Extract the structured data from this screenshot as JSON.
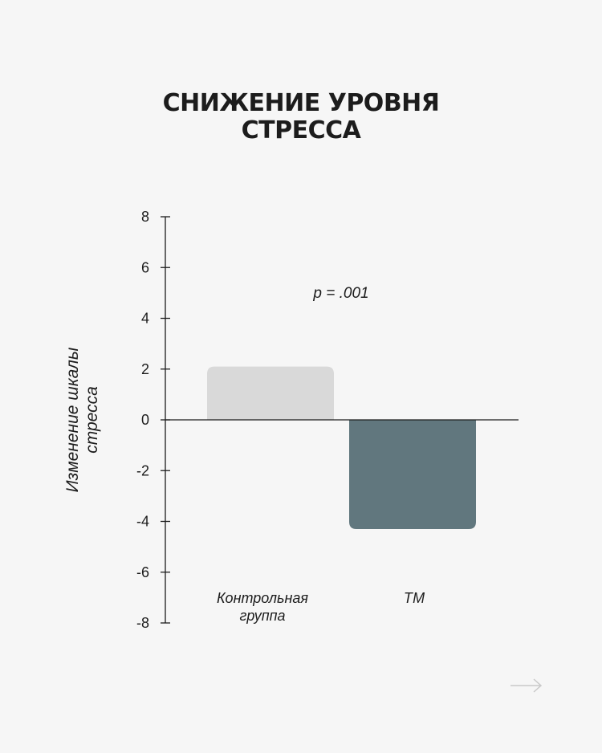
{
  "title_lines": [
    "СНИЖЕНИЕ УРОВНЯ",
    "СТРЕССА"
  ],
  "colors": {
    "background": "#f6f6f6",
    "text": "#1c1c1c",
    "axis": "#1c1c1c",
    "control_bar": "#d9d9d9",
    "tm_bar": "#61777e",
    "arrow": "#c9c9c9"
  },
  "chart_data": {
    "type": "bar",
    "title": "СНИЖЕНИЕ УРОВНЯ СТРЕССА",
    "ylabel_lines": [
      "Изменение шкалы",
      "стресса"
    ],
    "xlabel": "",
    "categories": [
      {
        "label_lines": [
          "Контрольная",
          "группа"
        ]
      },
      {
        "label_lines": [
          "ТМ"
        ]
      }
    ],
    "values": [
      2.1,
      -4.3
    ],
    "colors": [
      "#d9d9d9",
      "#61777e"
    ],
    "ylim": [
      -8,
      8
    ],
    "yticks": [
      8,
      6,
      4,
      2,
      0,
      -2,
      -4,
      -6,
      -8
    ],
    "ytick_labels": [
      "8",
      "6",
      "4",
      "2",
      "0",
      "-2",
      "-4",
      "-6",
      "-8"
    ],
    "annotation": "p = .001",
    "grid": false,
    "legend": "none"
  },
  "navigation": {
    "next_icon": "right-arrow-icon"
  }
}
